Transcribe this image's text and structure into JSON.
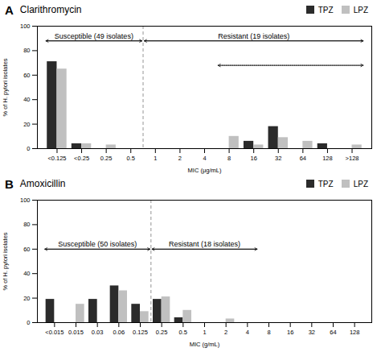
{
  "chart_data": [
    {
      "type": "bar",
      "panel_label": "A",
      "title": "Clarithromycin",
      "xlabel": "MIC (μg/mL)",
      "ylabel": "% of H. pylori isolates",
      "categories": [
        "<0.125",
        "<0.25",
        "0.25",
        "0.5",
        "1",
        "2",
        "4",
        "8",
        "16",
        "32",
        "64",
        "128",
        ">128"
      ],
      "series": [
        {
          "name": "TPZ",
          "color": "#2b2b2b",
          "values": [
            71,
            4,
            0,
            0,
            0,
            0,
            0,
            0,
            6,
            18,
            0,
            4,
            0
          ]
        },
        {
          "name": "LPZ",
          "color": "#c0c0c0",
          "values": [
            65,
            4,
            3,
            0,
            0,
            0,
            0,
            10,
            3,
            9,
            6,
            0,
            3
          ]
        }
      ],
      "annotations": [
        {
          "text": "Susceptible (49 isolates)",
          "from": "<0.125",
          "to": "0.5",
          "y": 88
        },
        {
          "text": "Resistant (19 isolates)",
          "from": "1",
          "to": ">128",
          "y": 88
        },
        {
          "from": "8",
          "to": ">128",
          "y": 68,
          "line_style": "dashed"
        }
      ],
      "ylim": [
        0,
        100
      ],
      "yticks": [
        0,
        20,
        40,
        60,
        80,
        100
      ],
      "grid": false,
      "legend": "upper right"
    },
    {
      "type": "bar",
      "panel_label": "B",
      "title": "Amoxicillin",
      "xlabel": "MIC (g/mL)",
      "ylabel": "% of H. pylori isolates",
      "categories": [
        "<0.015",
        "0.015",
        "0.03",
        "0.06",
        "0.125",
        "0.25",
        "0.5",
        "1",
        "2",
        "4",
        "8",
        "16",
        "32",
        "64",
        "128"
      ],
      "series": [
        {
          "name": "TPZ",
          "color": "#2b2b2b",
          "values": [
            19,
            0,
            19,
            30,
            15,
            19,
            4,
            0,
            0,
            0,
            0,
            0,
            0,
            0,
            0
          ]
        },
        {
          "name": "LPZ",
          "color": "#c0c0c0",
          "values": [
            0,
            15,
            0,
            26,
            9,
            21,
            10,
            0,
            3,
            0,
            0,
            0,
            0,
            0,
            0
          ]
        }
      ],
      "annotations": [
        {
          "text": "Susceptible (50 isolates)",
          "from": "<0.015",
          "to": "0.125",
          "y": 60
        },
        {
          "text": "Resistant (18 isolates)",
          "from": "0.25",
          "to": "4",
          "y": 60
        }
      ],
      "ylim": [
        0,
        100
      ],
      "yticks": [
        0,
        20,
        40,
        60,
        80,
        100
      ],
      "grid": false,
      "legend": "upper right"
    }
  ]
}
